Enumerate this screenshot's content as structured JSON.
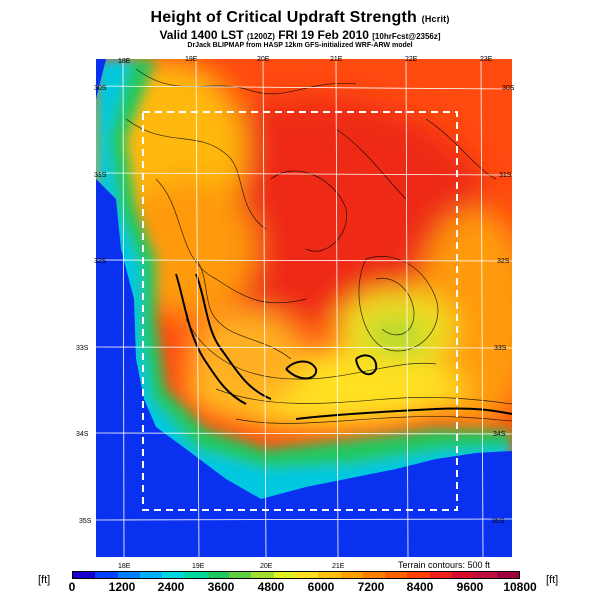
{
  "header": {
    "title": "Height of Critical Updraft Strength",
    "title_unit": "(Hcrit)",
    "valid_prefix": "Valid 1400 LST",
    "valid_utc": "(1200Z)",
    "valid_date": "FRI 19 Feb 2010",
    "forecast": "[10hrFcst@2356z]",
    "credit": "DrJack BLIPMAP from HASP 12km GFS-initialized WRF-ARW model"
  },
  "map": {
    "lon_labels_top": [
      "18E",
      "19E",
      "20E",
      "21E",
      "22E",
      "23E"
    ],
    "lon_labels_bottom": [
      "18E",
      "19E",
      "20E",
      "21E"
    ],
    "lat_labels_left": [
      "30S",
      "31S",
      "32S",
      "33S",
      "34S",
      "35S"
    ],
    "lat_labels_right": [
      "30S",
      "31S",
      "32S",
      "33S",
      "34S",
      "35S"
    ],
    "terrain_note": "Terrain contours: 500 ft"
  },
  "colorbar": {
    "unit_left": "[ft]",
    "unit_right": "[ft]",
    "ticks": [
      "0",
      "1200",
      "2400",
      "3600",
      "4800",
      "6000",
      "7200",
      "8400",
      "9600",
      "10800"
    ],
    "colors": [
      "#1a00d0",
      "#0040ff",
      "#0080ff",
      "#00b0ff",
      "#00d8e0",
      "#00d8a0",
      "#20c860",
      "#60d040",
      "#a0e030",
      "#e0f020",
      "#ffe020",
      "#ffc010",
      "#ffa000",
      "#ff8000",
      "#ff6000",
      "#ff4000",
      "#f02020",
      "#d81030",
      "#c01040",
      "#a00040"
    ],
    "range": [
      0,
      10800
    ]
  }
}
